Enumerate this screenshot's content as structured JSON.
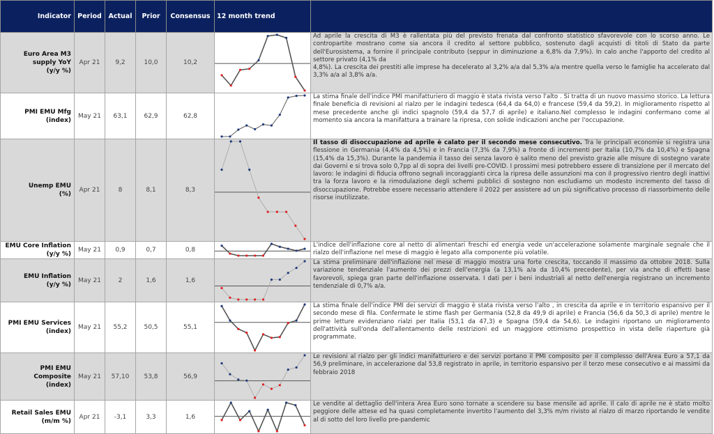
{
  "header": {
    "indicator": "Indicator",
    "period": "Period",
    "actual": "Actual",
    "prior": "Prior",
    "consensus": "Consensus",
    "trend": "12 month trend"
  },
  "colors": {
    "header_bg": "#0b215f",
    "above_marker": "#1f3a7a",
    "below_marker": "#e02020",
    "row_gray": "#d9d9d9"
  },
  "rows": [
    {
      "name": "Euro Area M3",
      "sub": "supply YoY",
      "unit": "(y/y %)",
      "period": "Apr 21",
      "actual": "9,2",
      "prior": "10,0",
      "consensus": "10,2",
      "shade": "g",
      "trendShade": "w",
      "lineStyle": "thick",
      "refLine": true,
      "trend": [
        -17,
        -32,
        -9.3,
        -7.7,
        4.7,
        40,
        41.7,
        37.3,
        -19.3,
        -39.3
      ],
      "bold": "",
      "text": " Ad aprile la crescita di M3 è rallentata più del previsto frenata dal confronto statistico sfavorevole con lo scorso anno. Le contropartite mostrano come sia ancora il credito al settore pubblico, sostenuto dagli acquisti di titoli di Stato da parte dell'Eurosistema, a fornire il principale contributo (seppur in diminuzione a 6,8% da 7,9%). In calo anche l'apporto del credito al settore privato (4,1% da",
      "text2": "4,8%). La crescita dei prestiti alle imprese ha decelerato al 3,2% a/a dal 5,3% a/a mentre quella verso le famiglie ha accelerato dal 3,3% a/a al 3,8% a/a."
    },
    {
      "name": "PMI EMU Mfg",
      "sub": "",
      "unit": "(index)",
      "period": "May 21",
      "actual": "63,1",
      "prior": "62,9",
      "consensus": "62,8",
      "shade": "w",
      "trendShade": "w",
      "lineStyle": "medium",
      "refLine": false,
      "trend": [
        -28.3,
        -28.3,
        -18.3,
        -12.3,
        -17.7,
        -10.7,
        -12.3,
        3.3,
        28.3,
        30.7,
        31.3
      ],
      "bold": "",
      "text": " La stima finale dell'indice PMI manifatturiero di maggio è stata rivista verso l'alto . Si tratta di un nuovo massimo storico. La lettura finale beneficia di revisioni al rialzo per le indagini tedesca (64,4 da 64,0) e francese (59,4 da 59,2). In miglioramento rispetto al mese precedente anche gli indici spagnolo (59,4 da 57,7 di aprile) e italiano.Nel complesso le indagini confermano come al momento sia ancora la manifattura a trainare la ripresa, con solide indicazioni anche per l'occupazione.",
      "text2": ""
    },
    {
      "name": "Unemp EMU",
      "sub": "",
      "unit": "(%)",
      "period": "Apr 21",
      "actual": "8",
      "prior": "8,1",
      "consensus": "8,3",
      "shade": "g",
      "trendShade": "g",
      "lineStyle": "thin",
      "refLine": true,
      "trend": [
        26,
        58.7,
        58.7,
        26,
        -6.3,
        -22.7,
        -22.7,
        -22.7,
        -38.7,
        -54
      ],
      "bold": "Il tasso di disoccupazione ad aprile è calato per il secondo mese consecutivo.",
      "text": " Tra le principali economie si registra una flessione in Germania (4,4% da 4,5%) e in Francia (7,3% da 7,9%) a fronte di incrementi per Italia (10,7% da 10,4%) e Spagna (15,4% da 15,3%). Durante la pandemia il tasso dei senza lavoro è salito meno del previsto grazie alle misure di sostegno varate dai Governi e si trova solo 0,7pp al di sopra dei livelli pre-COVID. I prossimi mesi potrebbero essere di transizione per il mercato del lavoro: le indagini di fiducia offrono segnali incoraggianti circa la ripresa delle assunzioni ma con il progressivo rientro degli inattivi tra la forza lavoro e la rimodulazione degli schemi pubblici di sostegno non escludiamo un modesto incremento del tasso di disoccupazione. Potrebbe essere necessario attendere il 2022 per assistere ad un più significativo processo di riassorbimento delle risorse inutilizzate.",
      "text2": ""
    },
    {
      "name": "EMU Core Inflation",
      "sub": "",
      "unit": "(y/y %)",
      "period": "May 21",
      "actual": "0,9",
      "prior": "0,7",
      "consensus": "0,8",
      "shade": "w",
      "trendShade": "w",
      "lineStyle": "thick",
      "refLine": true,
      "trend": [
        21,
        -10,
        -18,
        -18,
        -18,
        -18,
        28.3,
        16.7,
        9,
        1.3,
        9
      ],
      "bold": "",
      "text": " L'indice dell'inflazione core al netto di alimentari freschi ed energia vede un'accelerazione solamente marginale segnale che il rialzo dell'inflazione nel mese di maggio  è legato alla componente più volatile.",
      "text2": ""
    },
    {
      "name": "EMU Inflation",
      "sub": "",
      "unit": "(y/y %)",
      "period": "May 21",
      "actual": "2",
      "prior": "1,6",
      "consensus": "1,6",
      "shade": "g",
      "trendShade": "g",
      "lineStyle": "thin",
      "refLine": true,
      "trend": [
        -3,
        -17,
        -19.7,
        -19.7,
        -19.7,
        -19.7,
        9.3,
        9.3,
        19,
        26.3,
        36
      ],
      "bold": "",
      "text": "La stima preliminare dell'inflazione nel mese di maggio mostra una forte crescita, toccando il massimo da ottobre 2018. Sulla variazione tendenziale l'aumento dei prezzi dell'energia (a 13,1% a/a da 10,4% precedente), per via anche di effetti base favorevoli, spiega gran parte dell'inflazione osservata. I dati per i beni industriali al netto dell'energia registrano un incremento tendenziale di 0,7% a/a.",
      "text2": ""
    },
    {
      "name": "PMI EMU Services",
      "sub": "",
      "unit": "(index)",
      "period": "May 21",
      "actual": "55,2",
      "prior": "50,5",
      "consensus": "55,1",
      "shade": "w",
      "trendShade": "w",
      "lineStyle": "thick",
      "refLine": true,
      "trend": [
        26.3,
        3,
        -10.7,
        -16.7,
        -45.3,
        -19.3,
        -25,
        -23.7,
        -1,
        3,
        29
      ],
      "bold": "",
      "text": "La stima finale dell'indice PMI dei servizi di maggio è stata rivista verso l'alto , in crescita da  aprile e in territorio espansivo per il secondo mese di fila. Confermate le stime flash per Germania (52,8 da 49,9 di aprile) e Francia (56,6 da 50,3 di aprile) mentre le prime letture evidenziano rialzi per Italia (53,1 da 47,3) e Spagna (59,4 da 54,6). Le indagini riportano un miglioramento dell'attività sull'onda dell'allentamento delle restrizioni ed un maggiore ottimismo prospettico in vista delle riaperture già programmate.",
      "text2": ""
    },
    {
      "name": "PMI EMU Composite",
      "sub": "",
      "unit": "(index)",
      "period": "May 21",
      "actual": "57,10",
      "prior": "53,8",
      "consensus": "56,9",
      "shade": "g",
      "trendShade": "g",
      "lineStyle": "thin",
      "refLine": true,
      "trend": [
        24,
        9,
        1.7,
        0.3,
        -23.3,
        -5,
        -11,
        -6,
        15.3,
        18.3,
        35
      ],
      "bold": "",
      "text": "Le revisioni al rialzo per gli indici manifatturiero e dei servizi portano il PMI composito per il complesso dell'Area Euro a 57,1 da 56,9 preliminare, in accelerazione dal 53,8 registrato in aprile, in territorio espansivo per il terzo mese consecutivo e ai massimi da febbraio 2018",
      "text2": ""
    },
    {
      "name": "Retail Sales EMU",
      "sub": "",
      "unit": "(m/m %)",
      "period": "Apr 21",
      "actual": "-3,1",
      "prior": "3,3",
      "consensus": "1,6",
      "shade": "w",
      "trendShade": "w",
      "comShade": "g",
      "lineStyle": "thick",
      "refLine": true,
      "trend": [
        -5.3,
        19.3,
        -5.3,
        7.3,
        -21,
        9.3,
        -21,
        19.3,
        15.7,
        -12.7
      ],
      "bold": "",
      "text": "Le vendite al dettaglio dell'intera Area Euro sono tornate a scendere su base mensile  ad aprile. Il calo  di aprile ne è stato molto peggiore delle attese ed ha quasi completamente invertito l'aumento del 3,3% m/m rivisto al rialzo di marzo riportando le vendite al di sotto del loro livello pre-pandemic",
      "text2": ""
    }
  ]
}
